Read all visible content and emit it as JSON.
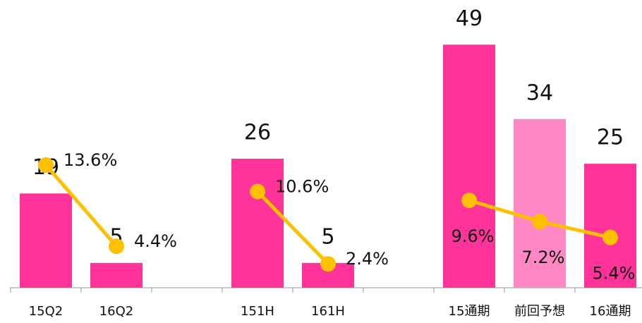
{
  "chart_data": {
    "type": "bar",
    "categories": [
      "15Q2",
      "16Q2",
      null,
      "151H",
      "161H",
      null,
      "15通期",
      "前回予想",
      "16通期"
    ],
    "ylim": [
      0,
      58
    ],
    "y2lim": [
      -0.3,
      32.3
    ],
    "series": [
      {
        "name": null,
        "type": "bar",
        "colors": [
          "#ff3399",
          "#ff3399",
          null,
          "#ff3399",
          "#ff3399",
          null,
          "#ff3399",
          "#ff88c4",
          "#ff3399"
        ],
        "values": [
          19,
          5,
          null,
          26,
          5,
          null,
          49,
          34,
          25
        ]
      },
      {
        "name": null,
        "type": "line",
        "axis": "y2",
        "color": "#ffc000",
        "values": [
          13.6,
          4.4,
          null,
          10.6,
          2.4,
          null,
          9.6,
          7.2,
          5.4
        ],
        "value_labels": [
          "13.6%",
          "4.4%",
          null,
          "10.6%",
          "2.4%",
          null,
          "9.6%",
          "7.2%",
          "5.4%"
        ]
      }
    ]
  }
}
